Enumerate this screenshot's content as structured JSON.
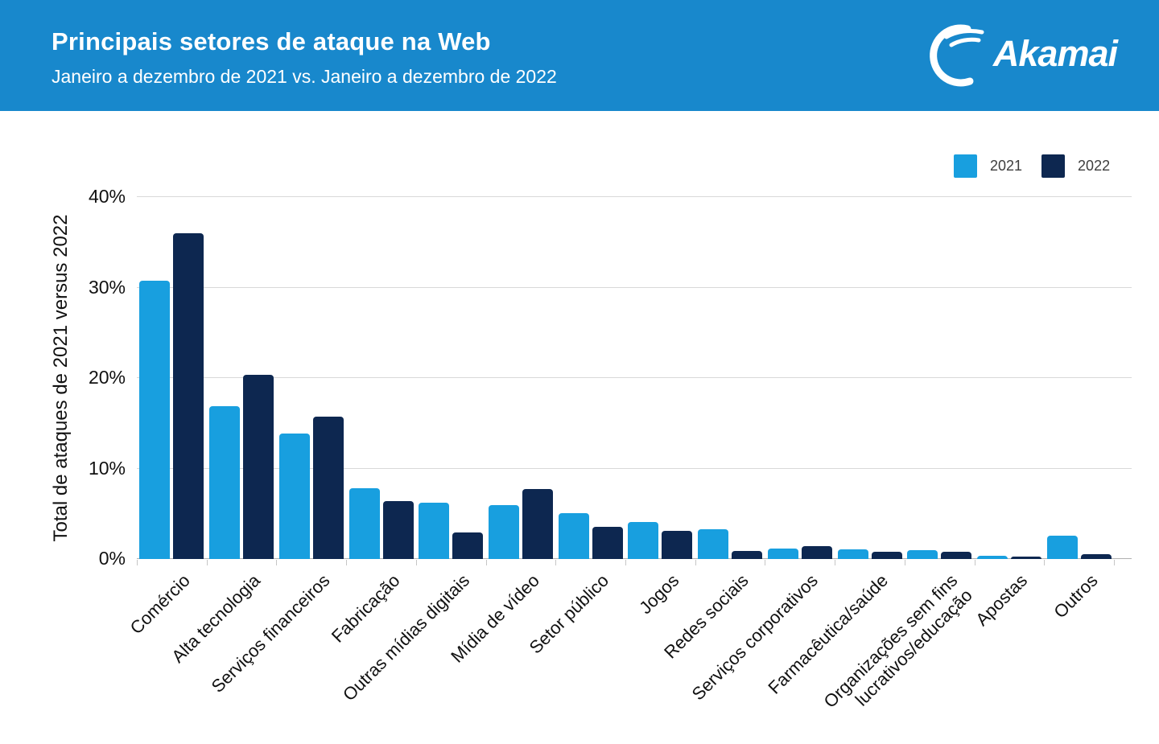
{
  "header": {
    "title": "Principais setores de ataque na Web",
    "subtitle": "Janeiro a dezembro de 2021 vs. Janeiro a dezembro de 2022",
    "logo_text": "Akamai",
    "background_color": "#1888CC"
  },
  "chart_data": {
    "type": "bar",
    "title": "Principais setores de ataque na Web",
    "subtitle": "Janeiro a dezembro de 2021 vs. Janeiro a dezembro de 2022",
    "ylabel": "Total de ataques de 2021 versus 2022",
    "xlabel": "",
    "ylim": [
      0,
      40
    ],
    "grid": true,
    "legend_position": "top-right",
    "unit": "%",
    "yticks": [
      {
        "label": "0%",
        "value": 0
      },
      {
        "label": "10%",
        "value": 10
      },
      {
        "label": "20%",
        "value": 20
      },
      {
        "label": "30%",
        "value": 30
      },
      {
        "label": "40%",
        "value": 40
      }
    ],
    "categories": [
      "Comércio",
      "Alta tecnologia",
      "Serviços financeiros",
      "Fabricação",
      "Outras mídias digitais",
      "Mídia de vídeo",
      "Setor público",
      "Jogos",
      "Redes sociais",
      "Serviços corporativos",
      "Farmacêutica/saúde",
      "Organizações sem fins\nlucrativos/educação",
      "Apostas",
      "Outros"
    ],
    "series": [
      {
        "name": "2021",
        "color": "#189FDF",
        "values": [
          30.8,
          16.9,
          13.9,
          7.8,
          6.2,
          6.0,
          5.1,
          4.1,
          3.3,
          1.2,
          1.1,
          1.0,
          0.4,
          2.6
        ]
      },
      {
        "name": "2022",
        "color": "#0D2750",
        "values": [
          36.0,
          20.4,
          15.7,
          6.4,
          2.9,
          7.7,
          3.6,
          3.1,
          0.9,
          1.4,
          0.8,
          0.8,
          0.3,
          0.5
        ]
      }
    ]
  }
}
